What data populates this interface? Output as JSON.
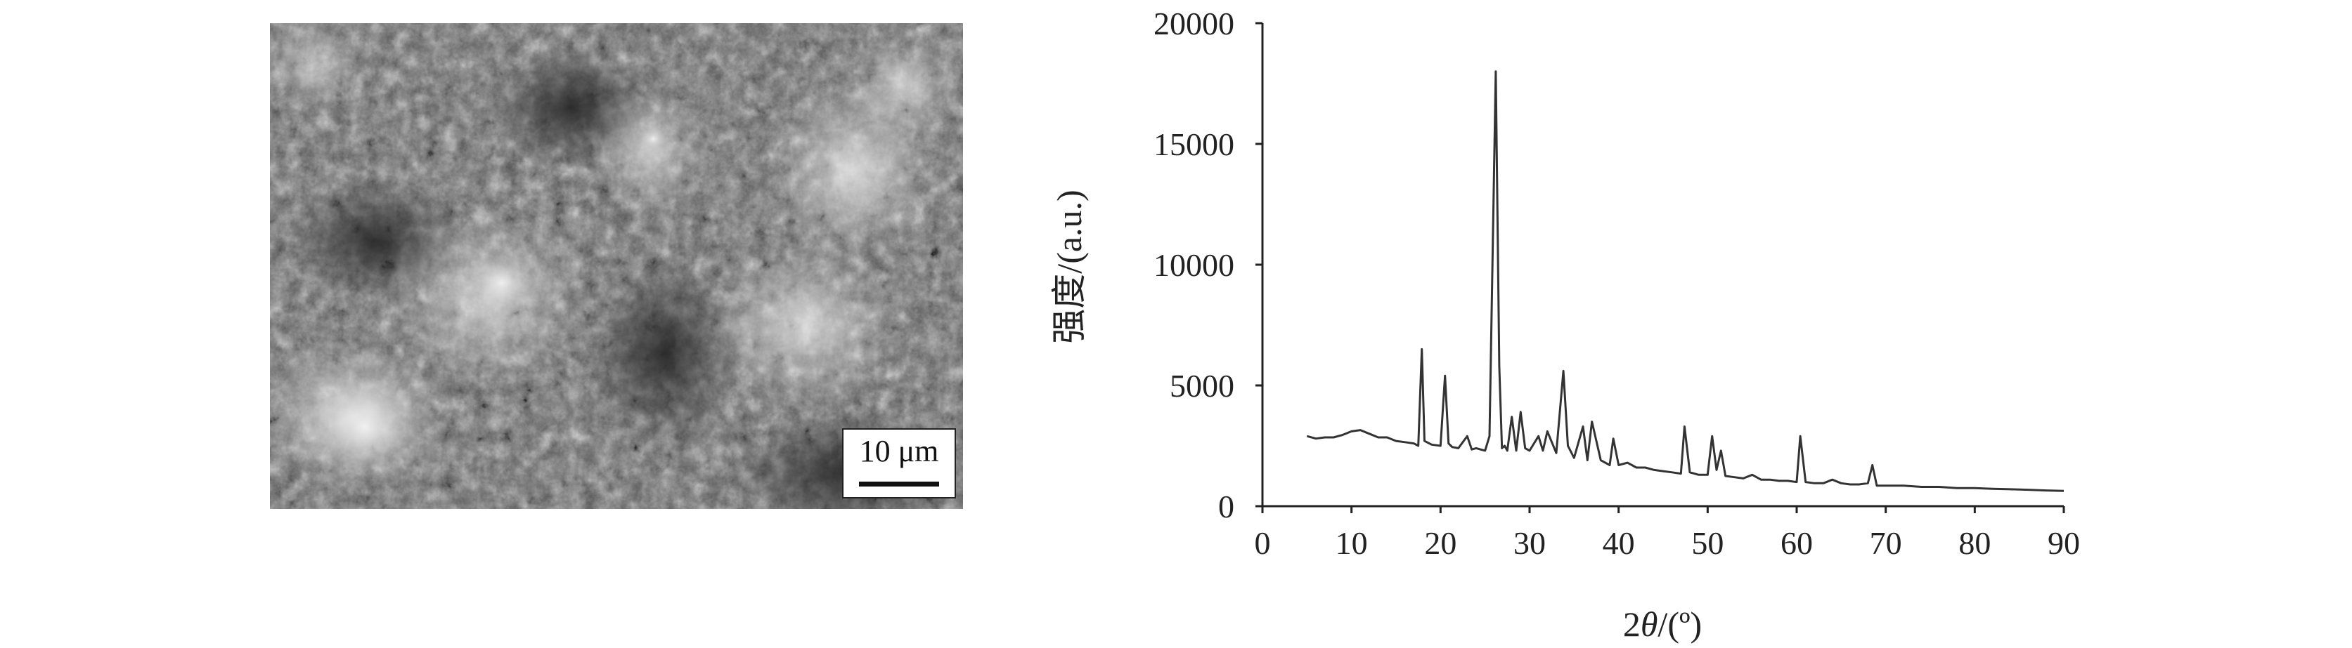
{
  "sem_image": {
    "scale_bar_label": "10 μm"
  },
  "chart_data": {
    "type": "line",
    "xlabel": "2θ/(º)",
    "ylabel": "强度/(a.u.)",
    "xlim": [
      0,
      90
    ],
    "ylim": [
      0,
      20000
    ],
    "x_ticks": [
      0,
      10,
      20,
      30,
      40,
      50,
      60,
      70,
      80,
      90
    ],
    "y_ticks": [
      0,
      5000,
      10000,
      15000,
      20000
    ],
    "grid": false,
    "line_color": "#333333",
    "series": [
      {
        "values_description_free": true,
        "x": [
          5,
          6,
          7,
          8,
          9,
          10,
          11,
          12,
          13,
          14,
          15,
          16,
          17,
          17.5,
          17.9,
          18.2,
          19,
          20,
          20.5,
          20.9,
          21.3,
          22,
          23,
          23.5,
          24,
          25,
          25.5,
          26.2,
          26.6,
          26.9,
          27.2,
          27.5,
          28,
          28.5,
          29,
          29.5,
          30,
          31,
          31.5,
          32,
          33,
          33.8,
          34.3,
          35,
          36,
          36.5,
          37,
          38,
          39,
          39.4,
          40,
          41,
          42,
          43,
          44,
          45,
          46,
          47,
          47.4,
          48,
          49,
          50,
          50.5,
          51,
          51.5,
          52,
          53,
          54,
          55,
          56,
          57,
          58,
          59,
          60,
          60.4,
          61,
          62,
          63,
          64,
          65,
          66,
          67,
          68,
          68.5,
          69,
          70,
          72,
          74,
          76,
          78,
          80,
          82,
          84,
          86,
          88,
          90
        ],
        "y": [
          2900,
          2800,
          2850,
          2850,
          2950,
          3100,
          3150,
          3000,
          2850,
          2850,
          2700,
          2650,
          2600,
          2500,
          6500,
          2700,
          2550,
          2500,
          5400,
          2600,
          2450,
          2400,
          2900,
          2350,
          2400,
          2300,
          2900,
          18000,
          5800,
          2400,
          2500,
          2300,
          3700,
          2300,
          3900,
          2400,
          2300,
          2900,
          2300,
          3100,
          2200,
          5600,
          2500,
          2000,
          3300,
          1900,
          3500,
          1900,
          1700,
          2800,
          1700,
          1800,
          1600,
          1600,
          1500,
          1450,
          1400,
          1350,
          3300,
          1400,
          1300,
          1300,
          2900,
          1500,
          2300,
          1250,
          1200,
          1150,
          1300,
          1100,
          1100,
          1050,
          1050,
          1000,
          2900,
          1000,
          950,
          950,
          1100,
          950,
          900,
          900,
          950,
          1700,
          850,
          850,
          850,
          800,
          800,
          750,
          750,
          720,
          700,
          680,
          650,
          630
        ]
      }
    ]
  }
}
